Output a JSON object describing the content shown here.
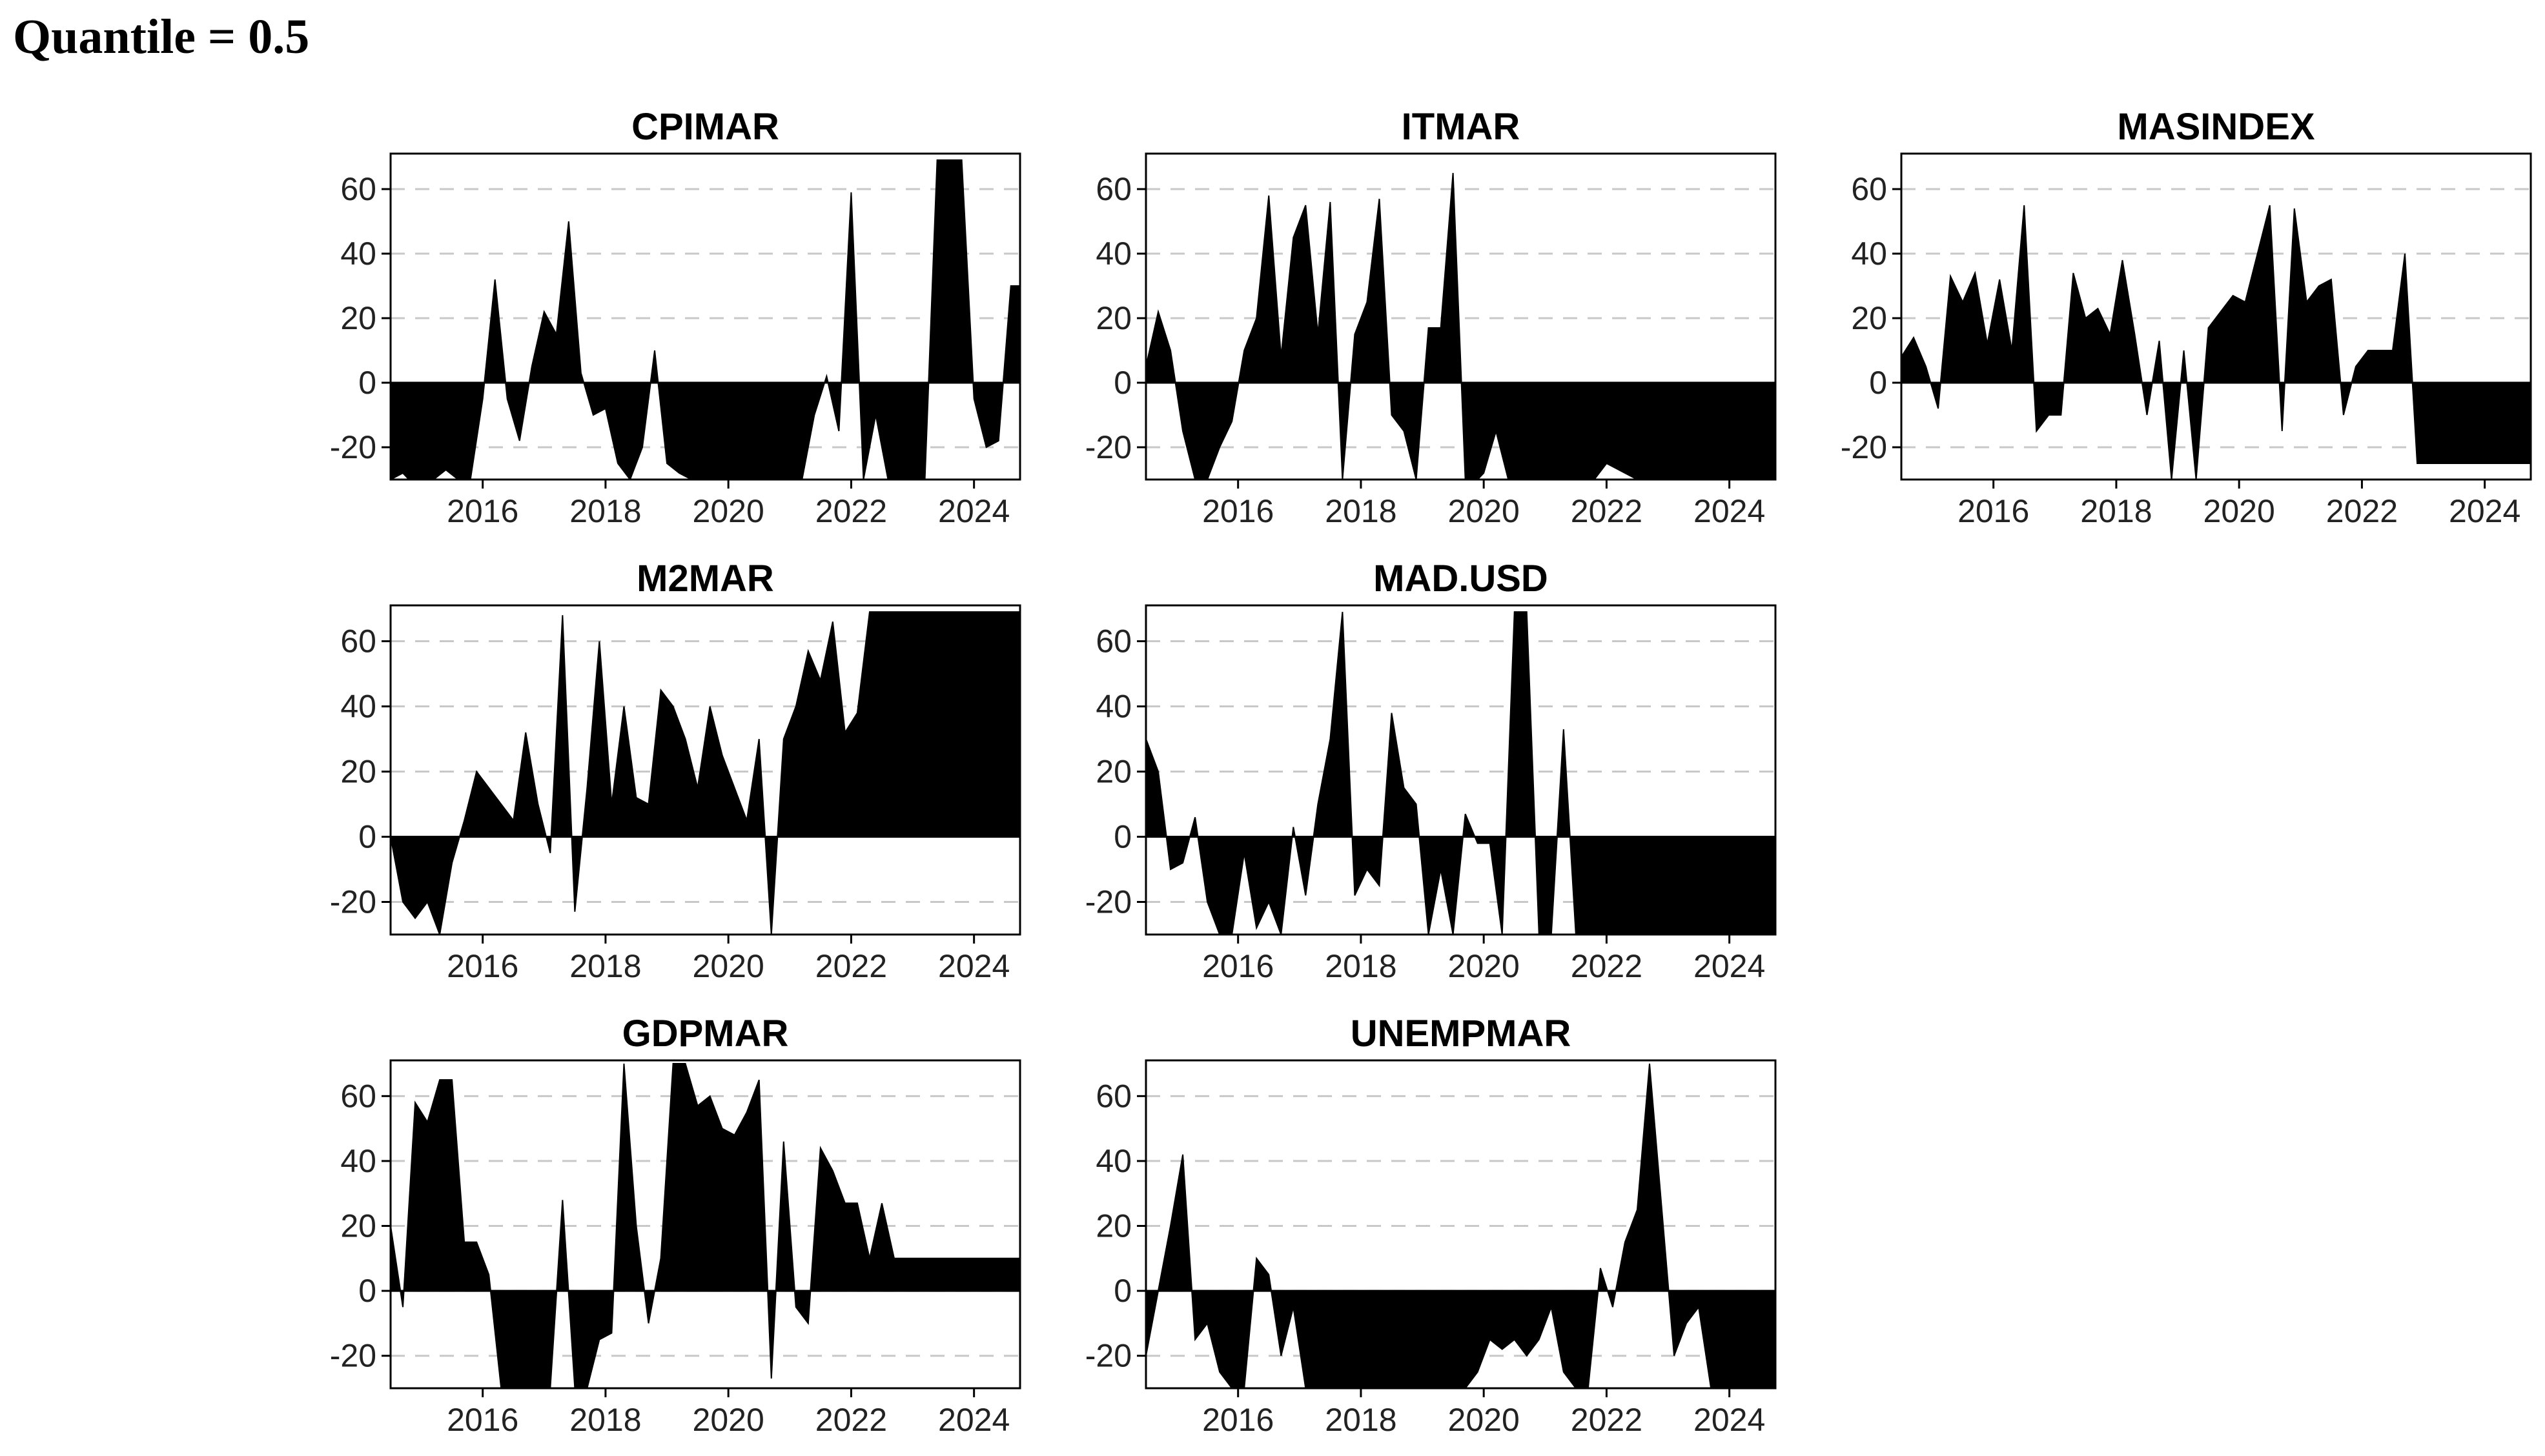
{
  "page": {
    "title": "Quantile = 0.5"
  },
  "chart_data": [
    {
      "type": "area",
      "title": "CPIMAR",
      "xlim": [
        2014.5,
        2024.75
      ],
      "ylim": [
        -30,
        71
      ],
      "xticks": [
        2016,
        2018,
        2020,
        2022,
        2024
      ],
      "yticks": [
        -20,
        0,
        20,
        40,
        60
      ],
      "grid": "y-dashed",
      "x": [
        2014.5,
        2014.7,
        2014.8,
        2015.0,
        2015.2,
        2015.4,
        2015.6,
        2015.8,
        2016.0,
        2016.2,
        2016.4,
        2016.6,
        2016.8,
        2017.0,
        2017.2,
        2017.4,
        2017.6,
        2017.8,
        2018.0,
        2018.2,
        2018.4,
        2018.6,
        2018.8,
        2019.0,
        2019.2,
        2019.4,
        2019.6,
        2019.8,
        2020.0,
        2020.2,
        2020.4,
        2020.6,
        2020.8,
        2021.0,
        2021.2,
        2021.4,
        2021.6,
        2021.8,
        2022.0,
        2022.2,
        2022.4,
        2022.6,
        2022.8,
        2023.0,
        2023.2,
        2023.4,
        2023.6,
        2023.8,
        2024.0,
        2024.2,
        2024.4,
        2024.6,
        2024.75
      ],
      "values": [
        -30,
        -28,
        -30,
        -30,
        -30,
        -27,
        -30,
        -30,
        -5,
        32,
        -5,
        -18,
        5,
        22,
        15,
        50,
        3,
        -10,
        -8,
        -25,
        -30,
        -20,
        10,
        -25,
        -28,
        -30,
        -30,
        -30,
        -30,
        -30,
        -30,
        -30,
        -30,
        -30,
        -30,
        -10,
        2,
        -15,
        59,
        -30,
        -10,
        -30,
        -30,
        -30,
        -30,
        69,
        69,
        69,
        -5,
        -20,
        -18,
        30,
        30
      ]
    },
    {
      "type": "area",
      "title": "ITMAR",
      "xlim": [
        2014.5,
        2024.75
      ],
      "ylim": [
        -30,
        71
      ],
      "xticks": [
        2016,
        2018,
        2020,
        2022,
        2024
      ],
      "yticks": [
        -20,
        0,
        20,
        40,
        60
      ],
      "grid": "y-dashed",
      "x": [
        2014.5,
        2014.7,
        2014.9,
        2015.1,
        2015.3,
        2015.5,
        2015.7,
        2015.9,
        2016.1,
        2016.3,
        2016.5,
        2016.7,
        2016.9,
        2017.1,
        2017.3,
        2017.5,
        2017.7,
        2017.9,
        2018.1,
        2018.3,
        2018.5,
        2018.7,
        2018.9,
        2019.1,
        2019.3,
        2019.5,
        2019.7,
        2019.9,
        2020.0,
        2020.2,
        2020.4,
        2020.6,
        2020.8,
        2021.0,
        2021.2,
        2021.4,
        2021.6,
        2021.8,
        2022.0,
        2022.5,
        2023.0,
        2023.5,
        2024.0,
        2024.75
      ],
      "values": [
        5,
        22,
        10,
        -15,
        -30,
        -30,
        -20,
        -12,
        10,
        20,
        58,
        8,
        45,
        55,
        15,
        56,
        -30,
        15,
        25,
        57,
        -10,
        -15,
        -30,
        17,
        17,
        65,
        -30,
        -30,
        -28,
        -15,
        -30,
        -30,
        -30,
        -30,
        -30,
        -30,
        -30,
        -30,
        -25,
        -30,
        -30,
        -30,
        -30,
        -30
      ]
    },
    {
      "type": "area",
      "title": "MASINDEX",
      "xlim": [
        2014.5,
        2024.75
      ],
      "ylim": [
        -30,
        71
      ],
      "xticks": [
        2016,
        2018,
        2020,
        2022,
        2024
      ],
      "yticks": [
        -20,
        0,
        20,
        40,
        60
      ],
      "grid": "y-dashed",
      "x": [
        2014.5,
        2014.7,
        2014.9,
        2015.1,
        2015.3,
        2015.5,
        2015.7,
        2015.9,
        2016.1,
        2016.3,
        2016.5,
        2016.7,
        2016.9,
        2017.1,
        2017.3,
        2017.5,
        2017.7,
        2017.9,
        2018.1,
        2018.3,
        2018.5,
        2018.7,
        2018.9,
        2019.1,
        2019.3,
        2019.5,
        2019.7,
        2019.9,
        2020.1,
        2020.3,
        2020.5,
        2020.7,
        2020.9,
        2021.1,
        2021.3,
        2021.5,
        2021.7,
        2021.9,
        2022.1,
        2022.3,
        2022.5,
        2022.7,
        2022.9,
        2023.1,
        2023.3,
        2023.5,
        2023.7,
        2023.9,
        2024.1,
        2024.3,
        2024.5,
        2024.75
      ],
      "values": [
        8,
        14,
        5,
        -8,
        33,
        25,
        34,
        12,
        32,
        10,
        55,
        -15,
        -10,
        -10,
        34,
        20,
        23,
        15,
        38,
        15,
        -10,
        13,
        -30,
        10,
        -30,
        17,
        22,
        27,
        25,
        40,
        55,
        -15,
        54,
        25,
        30,
        32,
        -10,
        5,
        10,
        10,
        10,
        40,
        -25,
        -25,
        -25,
        -25,
        -25,
        -25,
        -25,
        -25,
        -25,
        -25
      ]
    },
    {
      "type": "area",
      "title": "M2MAR",
      "xlim": [
        2014.5,
        2024.75
      ],
      "ylim": [
        -30,
        71
      ],
      "xticks": [
        2016,
        2018,
        2020,
        2022,
        2024
      ],
      "yticks": [
        -20,
        0,
        20,
        40,
        60
      ],
      "grid": "y-dashed",
      "x": [
        2014.5,
        2014.7,
        2014.9,
        2015.1,
        2015.3,
        2015.5,
        2015.7,
        2015.9,
        2016.1,
        2016.3,
        2016.5,
        2016.7,
        2016.9,
        2017.1,
        2017.3,
        2017.5,
        2017.7,
        2017.9,
        2018.1,
        2018.3,
        2018.5,
        2018.7,
        2018.9,
        2019.1,
        2019.3,
        2019.5,
        2019.7,
        2019.9,
        2020.1,
        2020.3,
        2020.5,
        2020.7,
        2020.9,
        2021.1,
        2021.3,
        2021.5,
        2021.7,
        2021.9,
        2022.1,
        2022.3,
        2022.5,
        2022.7,
        2022.9,
        2023.1,
        2023.3,
        2023.5,
        2023.7,
        2023.9,
        2024.1,
        2024.3,
        2024.5,
        2024.75
      ],
      "values": [
        0,
        -20,
        -25,
        -20,
        -30,
        -8,
        5,
        20,
        15,
        10,
        5,
        32,
        10,
        -5,
        68,
        -23,
        15,
        60,
        10,
        40,
        12,
        10,
        45,
        40,
        30,
        15,
        40,
        25,
        15,
        5,
        30,
        -30,
        30,
        40,
        57,
        48,
        66,
        32,
        38,
        69,
        69,
        69,
        69,
        69,
        69,
        69,
        69,
        69,
        69,
        69,
        69,
        69
      ]
    },
    {
      "type": "area",
      "title": "MAD.USD",
      "xlim": [
        2014.5,
        2024.75
      ],
      "ylim": [
        -30,
        71
      ],
      "xticks": [
        2016,
        2018,
        2020,
        2022,
        2024
      ],
      "yticks": [
        -20,
        0,
        20,
        40,
        60
      ],
      "grid": "y-dashed",
      "x": [
        2014.5,
        2014.7,
        2014.9,
        2015.1,
        2015.3,
        2015.5,
        2015.7,
        2015.9,
        2016.1,
        2016.3,
        2016.5,
        2016.7,
        2016.9,
        2017.1,
        2017.3,
        2017.5,
        2017.7,
        2017.9,
        2018.1,
        2018.3,
        2018.5,
        2018.7,
        2018.9,
        2019.1,
        2019.3,
        2019.5,
        2019.7,
        2019.9,
        2020.1,
        2020.3,
        2020.5,
        2020.7,
        2020.9,
        2021.1,
        2021.3,
        2021.5,
        2021.7,
        2021.9,
        2022.1,
        2022.3,
        2022.5,
        2022.7,
        2022.9,
        2023.1,
        2023.3,
        2023.5,
        2024.0,
        2024.75
      ],
      "values": [
        30,
        20,
        -10,
        -8,
        6,
        -20,
        -30,
        -30,
        -5,
        -28,
        -20,
        -30,
        3,
        -18,
        10,
        30,
        69,
        -18,
        -10,
        -15,
        38,
        15,
        10,
        -30,
        -10,
        -30,
        7,
        -2,
        -2,
        -30,
        69,
        69,
        -30,
        -30,
        33,
        -30,
        -30,
        -30,
        -30,
        -30,
        -30,
        -30,
        -30,
        -30,
        -30,
        -30,
        -30,
        -30
      ]
    },
    {
      "type": "area",
      "title": "GDPMAR",
      "xlim": [
        2014.5,
        2024.75
      ],
      "ylim": [
        -30,
        71
      ],
      "xticks": [
        2016,
        2018,
        2020,
        2022,
        2024
      ],
      "yticks": [
        -20,
        0,
        20,
        40,
        60
      ],
      "grid": "y-dashed",
      "x": [
        2014.5,
        2014.7,
        2014.9,
        2015.1,
        2015.3,
        2015.5,
        2015.7,
        2015.9,
        2016.1,
        2016.3,
        2016.5,
        2016.7,
        2016.9,
        2017.1,
        2017.3,
        2017.5,
        2017.7,
        2017.9,
        2018.1,
        2018.3,
        2018.5,
        2018.7,
        2018.9,
        2019.1,
        2019.3,
        2019.5,
        2019.7,
        2019.9,
        2020.1,
        2020.3,
        2020.5,
        2020.7,
        2020.9,
        2021.1,
        2021.3,
        2021.5,
        2021.7,
        2021.9,
        2022.1,
        2022.3,
        2022.5,
        2022.7,
        2022.9,
        2023.1,
        2023.3,
        2023.5,
        2023.7,
        2023.9,
        2024.1,
        2024.3,
        2024.5,
        2024.75
      ],
      "values": [
        20,
        -5,
        58,
        52,
        65,
        65,
        15,
        15,
        5,
        -30,
        -30,
        -30,
        -30,
        -30,
        28,
        -30,
        -30,
        -15,
        -13,
        70,
        20,
        -10,
        10,
        70,
        70,
        57,
        60,
        50,
        48,
        55,
        65,
        -27,
        46,
        -5,
        -10,
        44,
        37,
        27,
        27,
        10,
        27,
        10,
        10,
        10,
        10,
        10,
        10,
        10,
        10,
        10,
        10,
        10
      ]
    },
    {
      "type": "area",
      "title": "UNEMPMAR",
      "xlim": [
        2014.5,
        2024.75
      ],
      "ylim": [
        -30,
        71
      ],
      "xticks": [
        2016,
        2018,
        2020,
        2022,
        2024
      ],
      "yticks": [
        -20,
        0,
        20,
        40,
        60
      ],
      "grid": "y-dashed",
      "x": [
        2014.5,
        2014.7,
        2014.9,
        2015.1,
        2015.3,
        2015.5,
        2015.7,
        2015.9,
        2016.1,
        2016.3,
        2016.5,
        2016.7,
        2016.9,
        2017.1,
        2017.3,
        2017.5,
        2017.7,
        2017.9,
        2018.1,
        2018.3,
        2018.5,
        2018.7,
        2018.9,
        2019.1,
        2019.3,
        2019.5,
        2019.7,
        2019.9,
        2020.1,
        2020.3,
        2020.5,
        2020.7,
        2020.9,
        2021.1,
        2021.3,
        2021.5,
        2021.7,
        2021.9,
        2022.1,
        2022.3,
        2022.5,
        2022.7,
        2022.9,
        2023.1,
        2023.3,
        2023.5,
        2023.7,
        2023.9,
        2024.1,
        2024.3,
        2024.5,
        2024.75
      ],
      "values": [
        -20,
        0,
        20,
        42,
        -15,
        -10,
        -25,
        -30,
        -30,
        10,
        5,
        -20,
        -5,
        -30,
        -30,
        -30,
        -30,
        -30,
        -30,
        -30,
        -30,
        -30,
        -30,
        -30,
        -30,
        -30,
        -30,
        -25,
        -15,
        -18,
        -15,
        -20,
        -15,
        -5,
        -25,
        -30,
        -30,
        7,
        -5,
        15,
        25,
        70,
        25,
        -20,
        -10,
        -5,
        -30,
        -30,
        -30,
        -30,
        -30,
        -30
      ]
    }
  ]
}
